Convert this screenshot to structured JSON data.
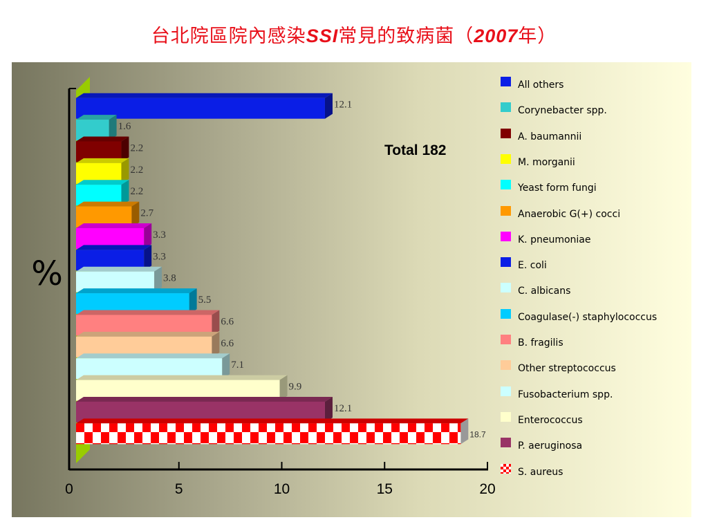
{
  "title": {
    "prefix": "台北院區院內感染",
    "ssi": "SSI",
    "middle": "常見的致病菌（",
    "year": "2007",
    "suffix": "年）"
  },
  "chart_data": {
    "type": "bar",
    "orientation": "horizontal",
    "title": "台北院區院內感染SSI常見的致病菌（2007年）",
    "ylabel": "%",
    "xlim": [
      0,
      20
    ],
    "x_ticks": [
      0,
      5,
      10,
      15,
      20
    ],
    "annotation": "Total  182",
    "legend_placement": "right",
    "bars": [
      {
        "name": "All others",
        "value": 12.1,
        "label": "12.1",
        "color": "#0a1ee6"
      },
      {
        "name": "Corynebacter spp.",
        "value": 1.6,
        "label": "1.6",
        "color": "#33cccc"
      },
      {
        "name": "A. baumannii",
        "value": 2.2,
        "label": "2.2",
        "color": "#800000"
      },
      {
        "name": "M. morganii",
        "value": 2.2,
        "label": "2.2",
        "color": "#ffff00"
      },
      {
        "name": "Yeast form fungi",
        "value": 2.2,
        "label": "2.2",
        "color": "#00ffff"
      },
      {
        "name": "Anaerobic G(+) cocci",
        "value": 2.7,
        "label": "2.7",
        "color": "#ff9900"
      },
      {
        "name": "K. pneumoniae",
        "value": 3.3,
        "label": "3.3",
        "color": "#ff00ff"
      },
      {
        "name": "E. coli",
        "value": 3.3,
        "label": "3.3",
        "color": "#0a1ee6"
      },
      {
        "name": "C. albicans",
        "value": 3.8,
        "label": "3.8",
        "color": "#ccffff"
      },
      {
        "name": "Coagulase(-) staphylococcus",
        "value": 5.5,
        "label": "5.5",
        "color": "#00ccff"
      },
      {
        "name": "B. fragilis",
        "value": 6.6,
        "label": "6.6",
        "color": "#ff8080"
      },
      {
        "name": "Other streptococcus",
        "value": 6.6,
        "label": "6.6",
        "color": "#ffcc99"
      },
      {
        "name": "Fusobacterium spp.",
        "value": 7.1,
        "label": "7.1",
        "color": "#ccffff"
      },
      {
        "name": "Enterococcus",
        "value": 9.9,
        "label": "9.9",
        "color": "#ffffcc"
      },
      {
        "name": "P. aeruginosa",
        "value": 12.1,
        "label": "12.1",
        "color": "#993366"
      },
      {
        "name": "S. aureus",
        "value": 18.7,
        "label": "18.7",
        "color": "#ff0000",
        "pattern": "checker"
      }
    ]
  }
}
